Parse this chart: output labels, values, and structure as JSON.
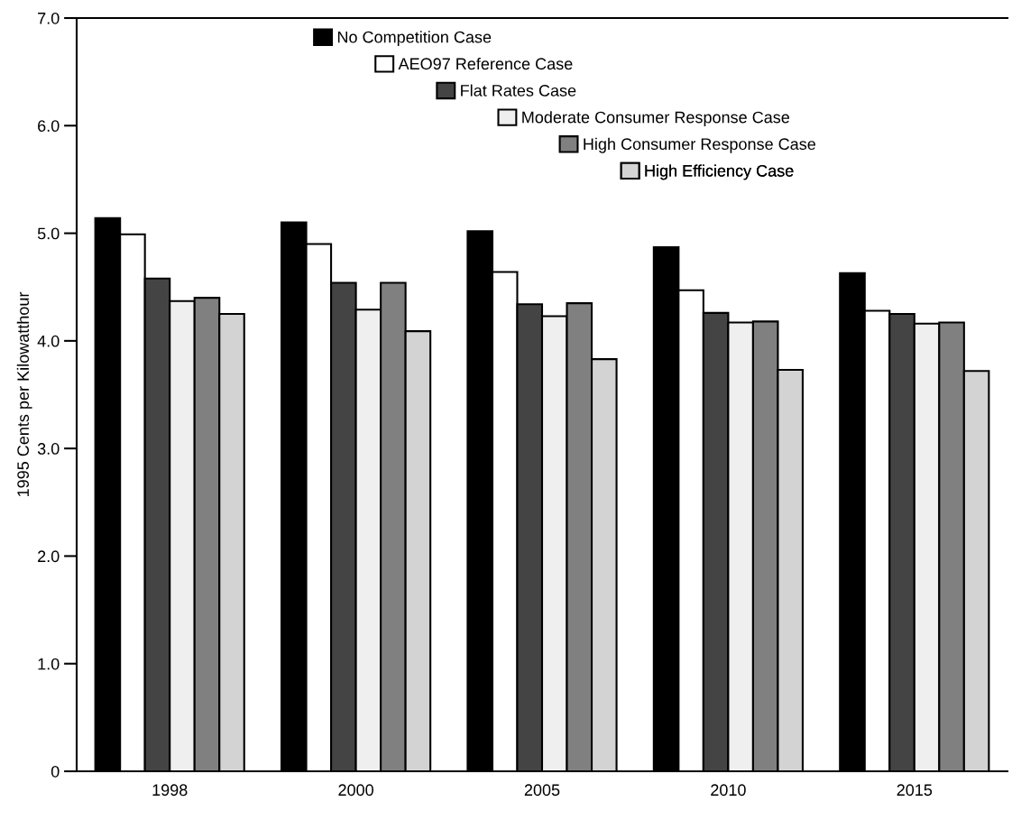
{
  "chart_data": {
    "type": "bar",
    "ylabel": "1995 Cents per Kilowatthour",
    "categories": [
      "1998",
      "2000",
      "2005",
      "2010",
      "2015"
    ],
    "series": [
      {
        "name": "No Competition Case",
        "color": "#000000",
        "values": [
          5.14,
          5.1,
          5.02,
          4.87,
          4.63
        ]
      },
      {
        "name": "AEO97 Reference Case",
        "color": "#ffffff",
        "values": [
          4.99,
          4.9,
          4.64,
          4.47,
          4.28
        ]
      },
      {
        "name": "Flat Rates Case",
        "color": "#444444",
        "values": [
          4.58,
          4.54,
          4.34,
          4.26,
          4.25
        ]
      },
      {
        "name": "Moderate Consumer Response Case",
        "color": "#efefef",
        "values": [
          4.37,
          4.29,
          4.23,
          4.17,
          4.16
        ]
      },
      {
        "name": "High Consumer Response Case",
        "color": "#808080",
        "values": [
          4.4,
          4.54,
          4.35,
          4.18,
          4.17
        ]
      },
      {
        "name": "High Efficiency Case",
        "color": "#d3d3d3",
        "values": [
          4.25,
          4.09,
          3.83,
          3.73,
          3.72
        ]
      }
    ],
    "ylim": [
      0,
      7
    ],
    "yticks": [
      {
        "value": 0,
        "label": "0"
      },
      {
        "value": 1,
        "label": "1.0"
      },
      {
        "value": 2,
        "label": "2.0"
      },
      {
        "value": 3,
        "label": "3.0"
      },
      {
        "value": 4,
        "label": "4.0"
      },
      {
        "value": 5,
        "label": "5.0"
      },
      {
        "value": 6,
        "label": "6.0"
      },
      {
        "value": 7,
        "label": "7.0"
      }
    ],
    "grid": false,
    "legend": "top"
  }
}
